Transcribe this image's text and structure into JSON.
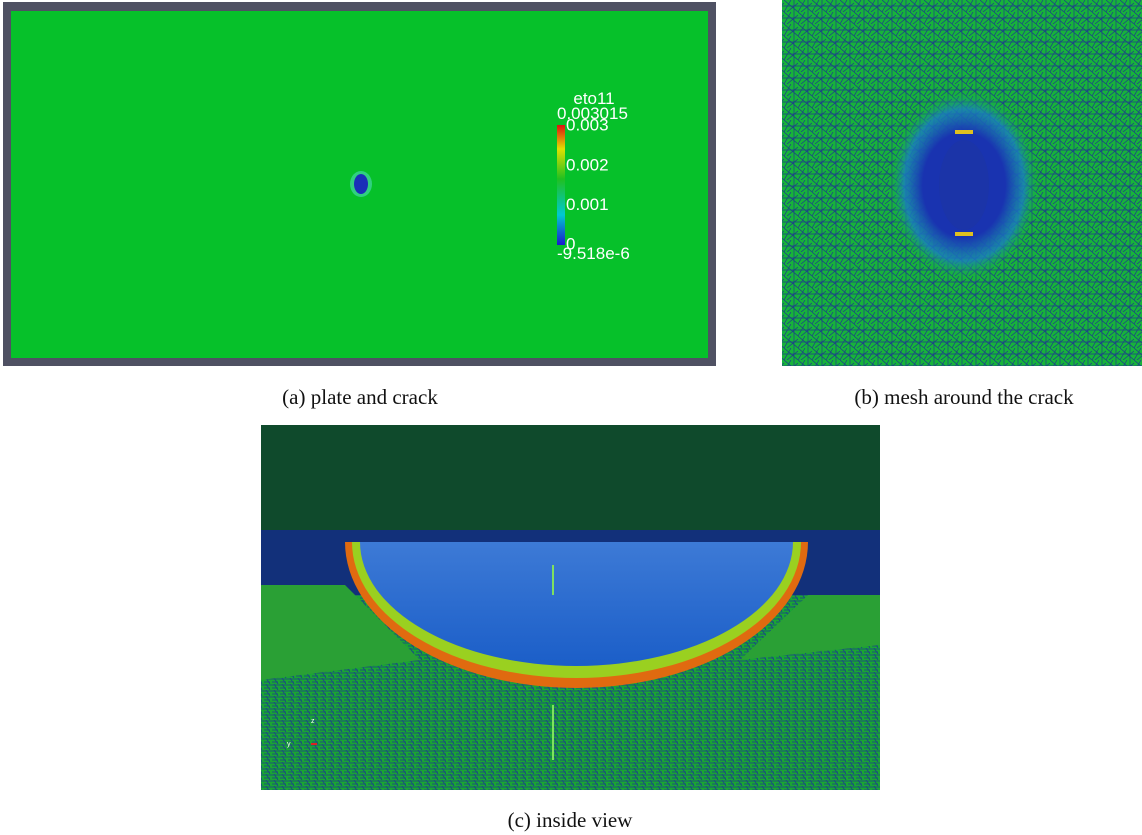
{
  "figures": [
    {
      "caption": "(a) plate and crack",
      "colorbar": {
        "title": "eto11",
        "ticks": [
          0.003015,
          0.003,
          0.002,
          0.001,
          0,
          {
            "value": -9.518e-06,
            "label": "-9.518e-6"
          }
        ]
      }
    },
    {
      "caption": "(b) mesh around the crack"
    },
    {
      "caption": "(c) inside view",
      "axes": [
        "z",
        "y"
      ]
    }
  ]
}
